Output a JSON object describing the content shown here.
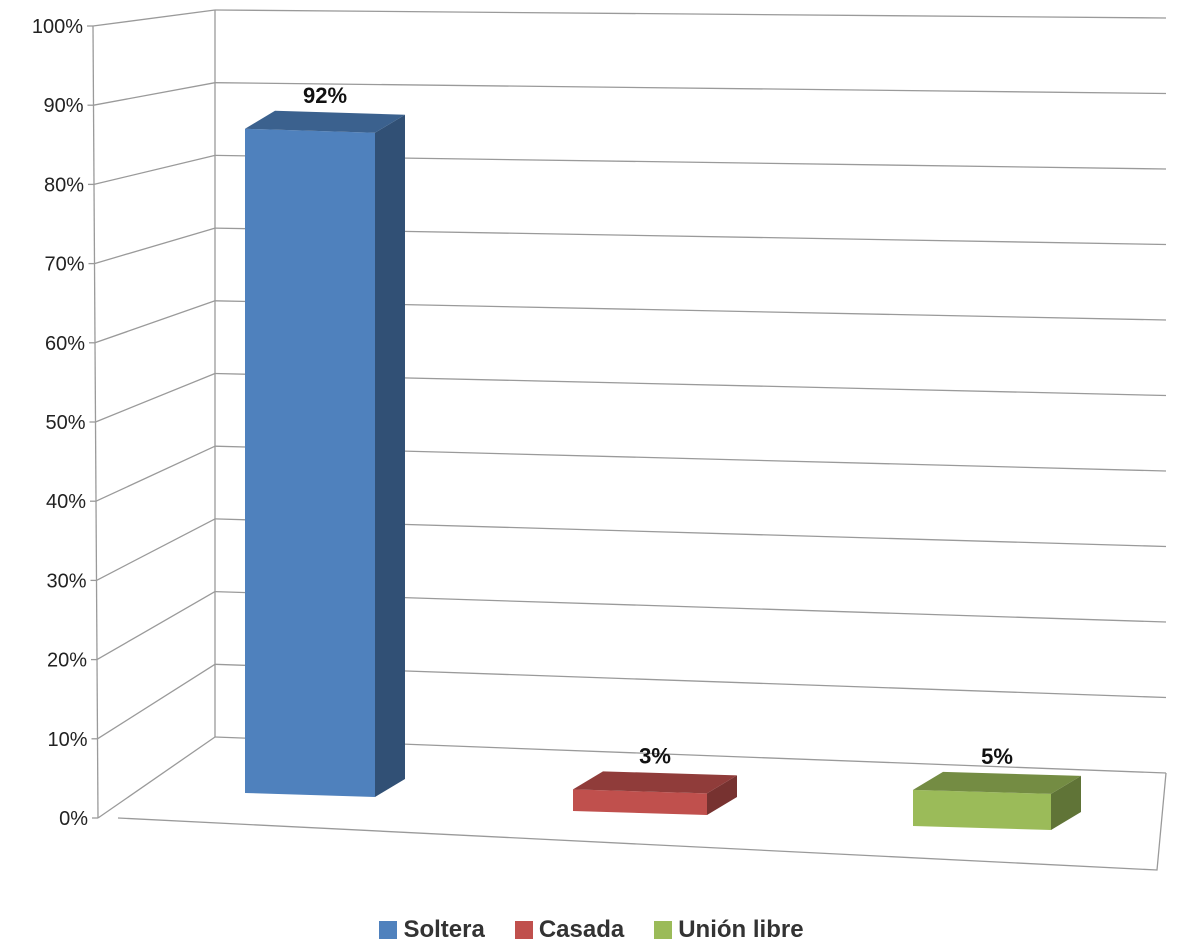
{
  "chart_data": {
    "type": "bar",
    "title": "",
    "xlabel": "",
    "ylabel": "",
    "categories": [
      "Soltera",
      "Casada",
      "Unión libre"
    ],
    "values": [
      92,
      3,
      5
    ],
    "data_labels": [
      "92%",
      "3%",
      "5%"
    ],
    "y_ticks": [
      "0%",
      "10%",
      "20%",
      "30%",
      "40%",
      "50%",
      "60%",
      "70%",
      "80%",
      "90%",
      "100%"
    ],
    "ylim": [
      0,
      100
    ],
    "grid": true,
    "three_d": true,
    "legend_position": "bottom",
    "colors": [
      "#4f81bd",
      "#c0504d",
      "#9bbb59"
    ],
    "legend": [
      {
        "label": "Soltera",
        "color": "#4f81bd"
      },
      {
        "label": "Casada",
        "color": "#c0504d"
      },
      {
        "label": "Unión libre",
        "color": "#9bbb59"
      }
    ]
  }
}
